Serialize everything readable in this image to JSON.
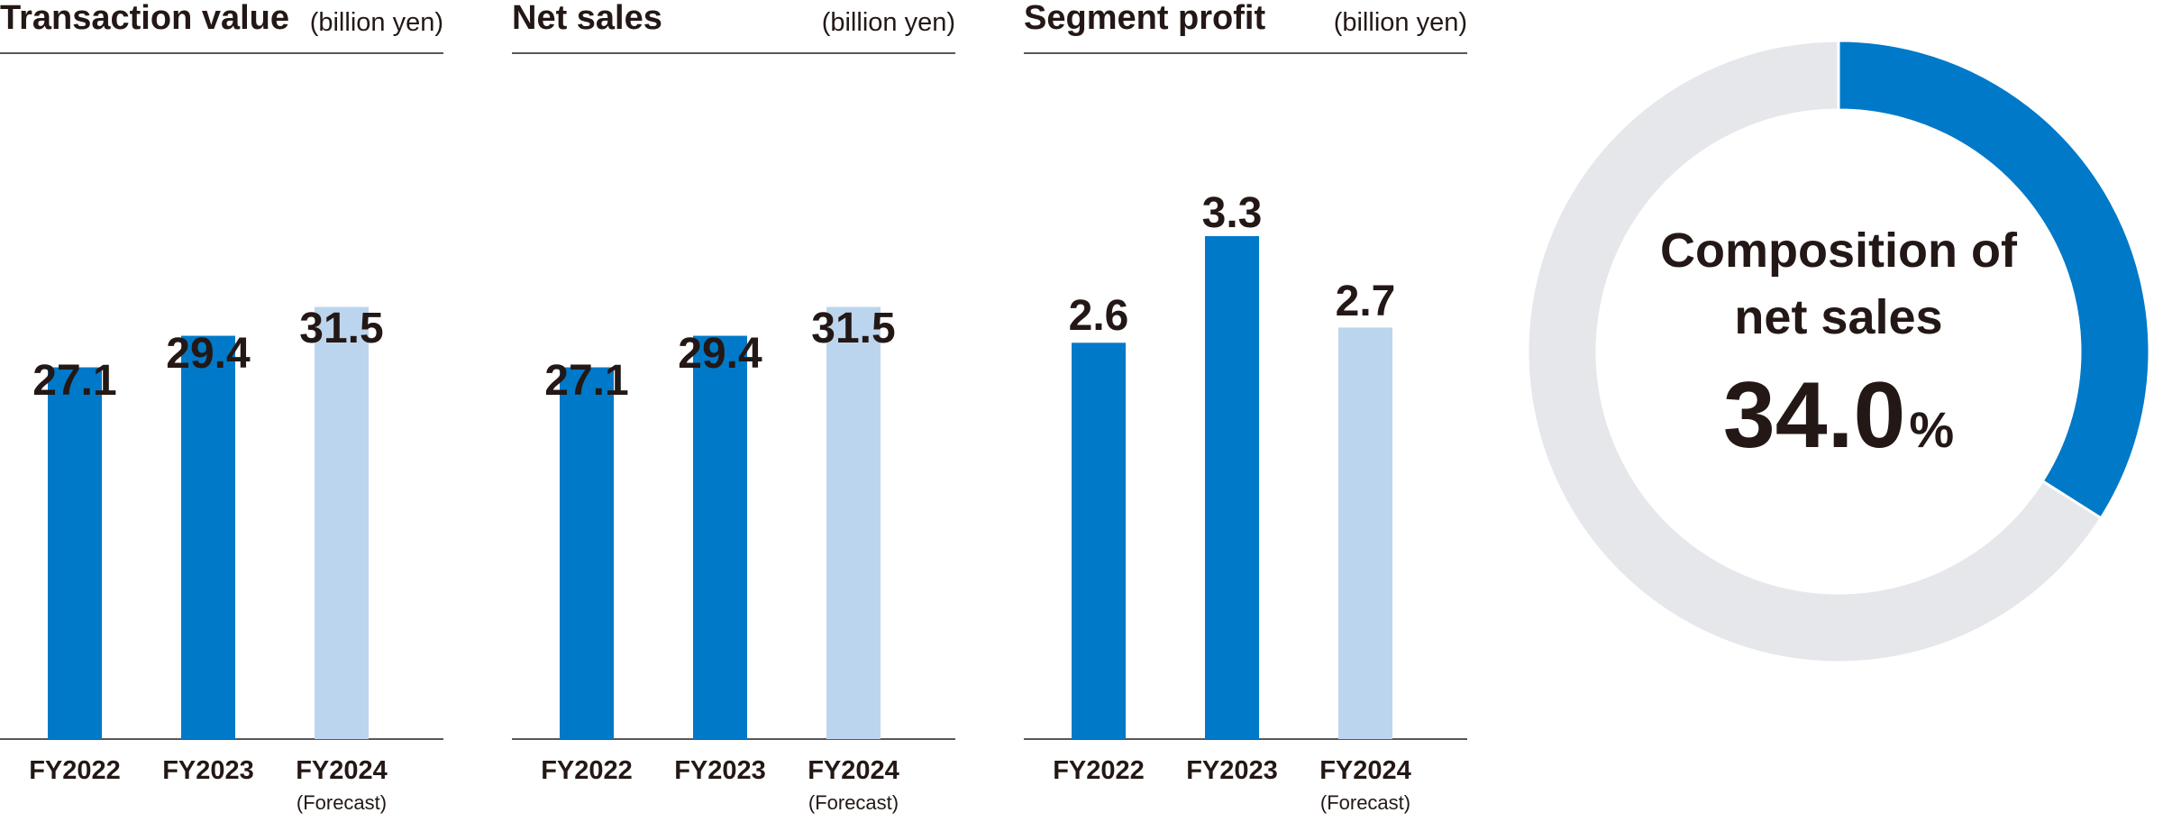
{
  "colors": {
    "actual": "#0079c9",
    "forecast": "#bcd5ee",
    "donut_track": "#e5e7ea",
    "axis": "#595757",
    "text": "#231815"
  },
  "chart_data": [
    {
      "type": "bar",
      "title": "Transaction value",
      "unit": "(billion yen)",
      "categories": [
        "FY2022",
        "FY2023",
        "FY2024"
      ],
      "category_sublabels": [
        "",
        "",
        "(Forecast)"
      ],
      "values": [
        27.1,
        29.4,
        31.5
      ],
      "value_labels": [
        "27.1",
        "29.4",
        "31.5"
      ],
      "forecast": [
        false,
        false,
        true
      ],
      "ylim": [
        0,
        50
      ]
    },
    {
      "type": "bar",
      "title": "Net sales",
      "unit": "(billion yen)",
      "categories": [
        "FY2022",
        "FY2023",
        "FY2024"
      ],
      "category_sublabels": [
        "",
        "",
        "(Forecast)"
      ],
      "values": [
        27.1,
        29.4,
        31.5
      ],
      "value_labels": [
        "27.1",
        "29.4",
        "31.5"
      ],
      "forecast": [
        false,
        false,
        true
      ],
      "ylim": [
        0,
        50
      ]
    },
    {
      "type": "bar",
      "title": "Segment profit",
      "unit": "(billion yen)",
      "categories": [
        "FY2022",
        "FY2023",
        "FY2024"
      ],
      "category_sublabels": [
        "",
        "",
        "(Forecast)"
      ],
      "values": [
        2.6,
        3.3,
        2.7
      ],
      "value_labels": [
        "2.6",
        "3.3",
        "2.7"
      ],
      "forecast": [
        false,
        false,
        true
      ],
      "ylim": [
        0,
        4.5
      ]
    },
    {
      "type": "pie",
      "title_lines": [
        "Composition of",
        "net sales"
      ],
      "value": 34.0,
      "value_label": "34.0",
      "value_unit": "%"
    }
  ]
}
